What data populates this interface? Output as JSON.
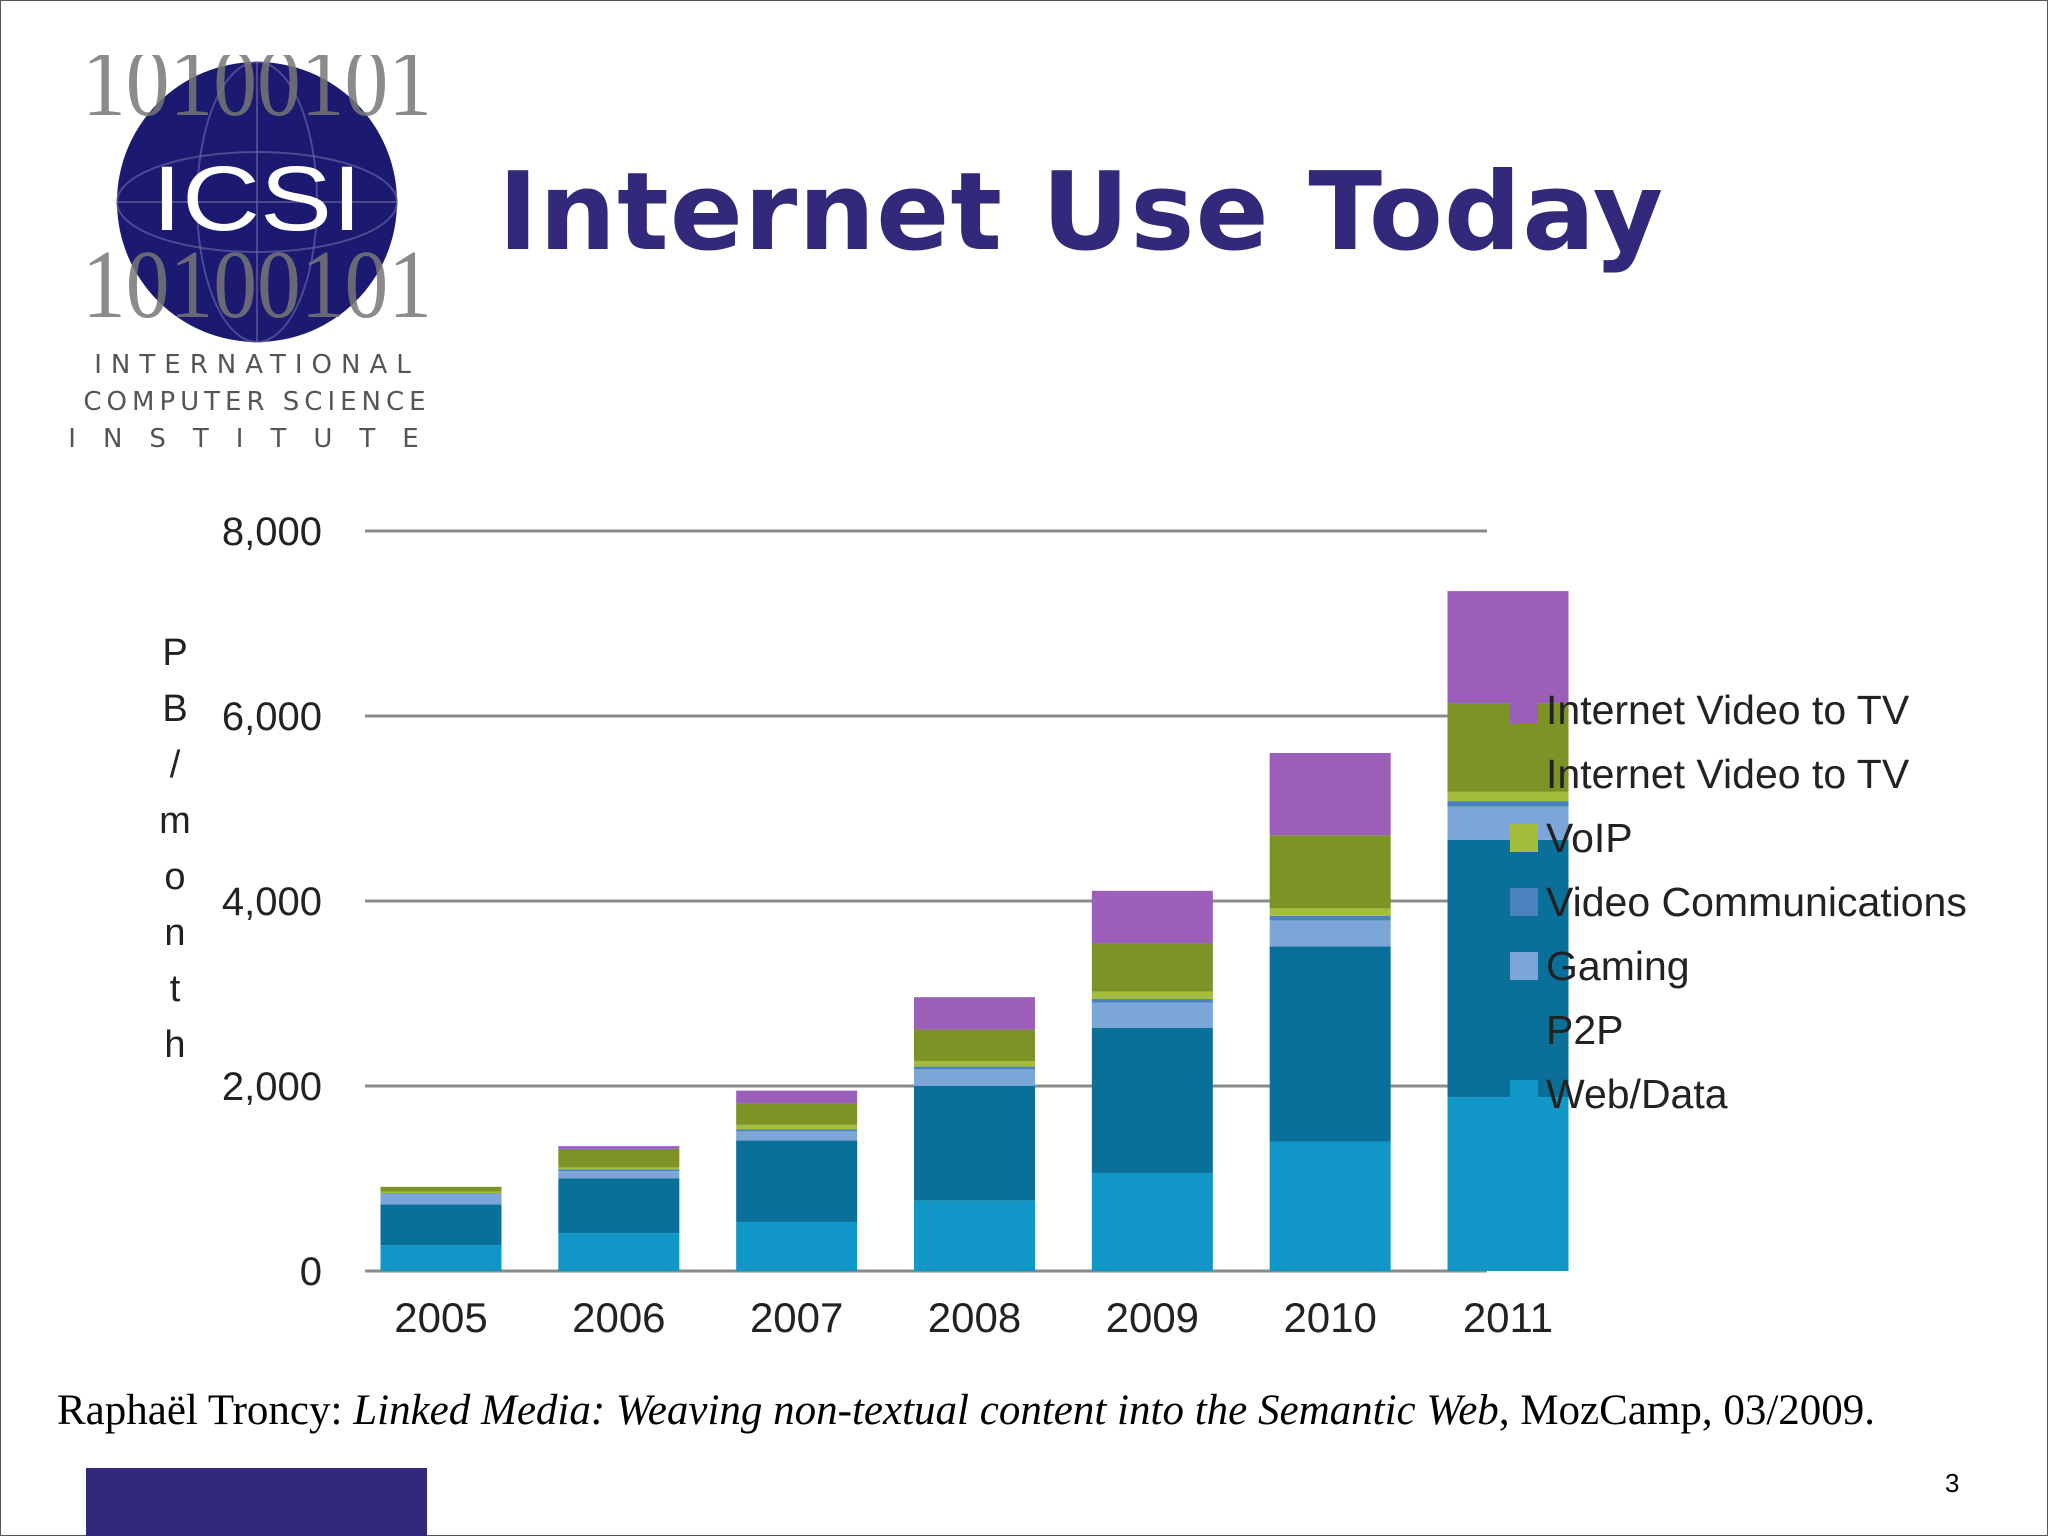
{
  "slide": {
    "title": "Internet Use Today",
    "page_number": "3",
    "citation": {
      "author": "Raphaël Troncy: ",
      "work": "Linked Media: Weaving non-textual content into the Semantic Web",
      "venue": ", MozCamp, 03/2009."
    },
    "logo": {
      "acronym": "ICSI",
      "binary_rows": [
        "10100101",
        "10100101",
        "10100101"
      ],
      "name_lines": [
        "INTERNATIONAL",
        "COMPUTER SCIENCE",
        "INSTITUTE"
      ]
    },
    "colors": {
      "title": "#33297a",
      "footer_bar": "#33297a"
    }
  },
  "chart_data": {
    "type": "bar",
    "stacked": true,
    "title": "",
    "xlabel": "",
    "ylabel": "PB/month",
    "ylim": [
      0,
      8000
    ],
    "yticks": [
      0,
      2000,
      4000,
      6000,
      8000
    ],
    "ytick_labels": [
      "0",
      "2,000",
      "4,000",
      "6,000",
      "8,000"
    ],
    "grid": true,
    "legend_position": "right",
    "categories": [
      "2005",
      "2006",
      "2007",
      "2008",
      "2009",
      "2010",
      "2011"
    ],
    "series": [
      {
        "name": "Web/Data",
        "color": "#1197c7",
        "values": [
          280,
          410,
          530,
          760,
          1060,
          1400,
          1880
        ]
      },
      {
        "name": "P2P",
        "color": "#0a709a",
        "values": [
          440,
          590,
          880,
          1240,
          1570,
          2110,
          2780
        ]
      },
      {
        "name": "Gaming",
        "color": "#7ba6d7",
        "values": [
          110,
          80,
          100,
          180,
          270,
          280,
          360
        ]
      },
      {
        "name": "Video Communications",
        "color": "#4a82bd",
        "values": [
          10,
          20,
          20,
          30,
          40,
          50,
          60
        ]
      },
      {
        "name": "VoIP",
        "color": "#a4bd3c",
        "values": [
          20,
          20,
          50,
          60,
          80,
          80,
          100
        ]
      },
      {
        "name": "Internet Video to TV",
        "color": "#7e9325",
        "values": [
          50,
          200,
          230,
          340,
          520,
          790,
          960
        ]
      },
      {
        "name": "Internet Video to TV",
        "color": "#9b5fba",
        "values": [
          0,
          30,
          140,
          350,
          570,
          890,
          1210
        ]
      }
    ]
  }
}
